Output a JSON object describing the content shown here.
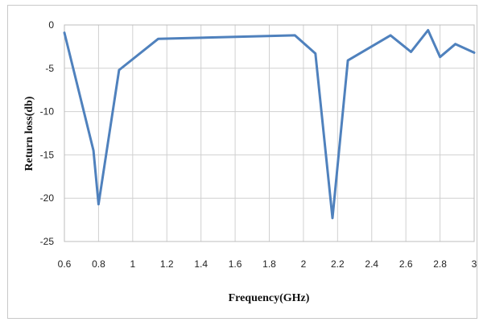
{
  "chart_data": {
    "type": "line",
    "title": "",
    "xlabel": "Frequency(GHz)",
    "ylabel": "Return loss(db)",
    "xlim": [
      0.6,
      3.0
    ],
    "ylim": [
      -25,
      0
    ],
    "xticks": [
      0.6,
      0.8,
      1.0,
      1.2,
      1.4,
      1.6,
      1.8,
      2.0,
      2.2,
      2.4,
      2.6,
      2.8,
      3.0
    ],
    "xtick_labels": [
      "0.6",
      "0.8",
      "1",
      "1.2",
      "1.4",
      "1.6",
      "1.8",
      "2",
      "2.2",
      "2.4",
      "2.6",
      "2.8",
      "3"
    ],
    "yticks": [
      0,
      -5,
      -10,
      -15,
      -20,
      -25
    ],
    "ytick_labels": [
      "0",
      "-5",
      "-10",
      "-15",
      "-20",
      "-25"
    ],
    "grid": true,
    "line_color": "#4f81bd",
    "series": [
      {
        "x": [
          0.6,
          0.77,
          0.8,
          0.92,
          1.15,
          1.95,
          2.07,
          2.17,
          2.26,
          2.51,
          2.63,
          2.73,
          2.8,
          2.89,
          3.0
        ],
        "y": [
          -0.9,
          -14.5,
          -20.7,
          -5.2,
          -1.6,
          -1.2,
          -3.3,
          -22.3,
          -4.1,
          -1.2,
          -3.1,
          -0.6,
          -3.7,
          -2.2,
          -3.2
        ]
      }
    ]
  }
}
